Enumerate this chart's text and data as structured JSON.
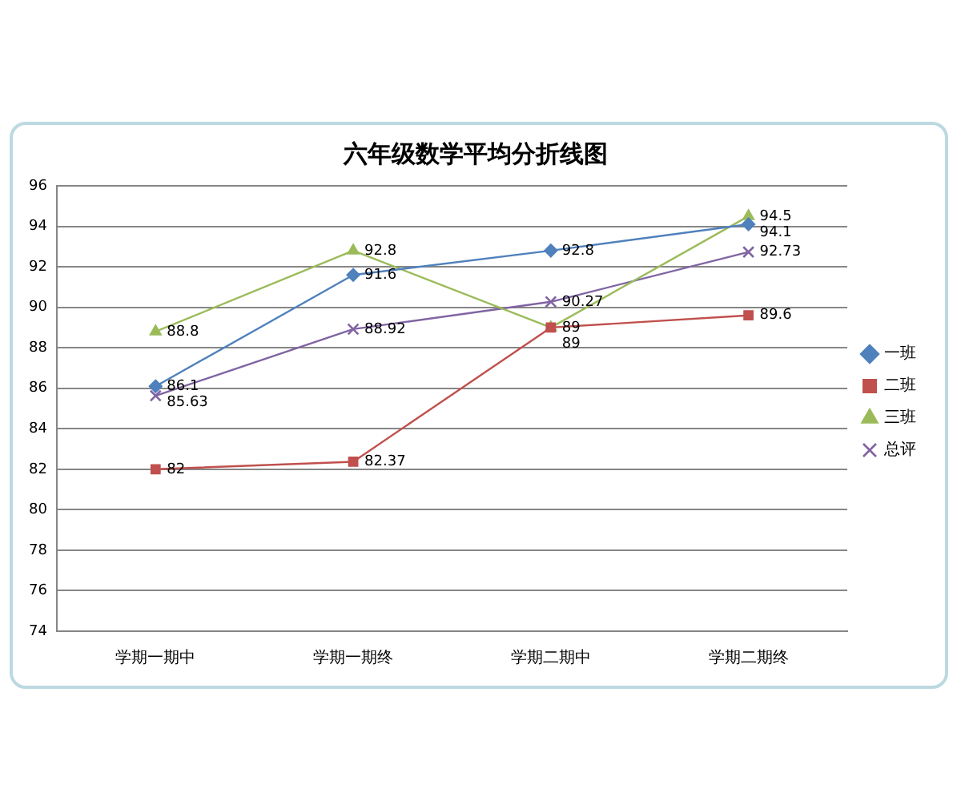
{
  "chart_data": {
    "type": "line",
    "title": "六年级数学平均分折线图",
    "categories": [
      "学期一期中",
      "学期一期终",
      "学期二期中",
      "学期二期终"
    ],
    "series": [
      {
        "name": "一班",
        "color": "#4f81bd",
        "marker": "diamond",
        "values": [
          86.1,
          91.6,
          92.8,
          94.1
        ]
      },
      {
        "name": "二班",
        "color": "#c0504d",
        "marker": "square",
        "values": [
          82,
          82.37,
          89,
          89.6
        ]
      },
      {
        "name": "三班",
        "color": "#9bbb59",
        "marker": "triangle",
        "values": [
          88.8,
          92.8,
          89,
          94.5
        ]
      },
      {
        "name": "总评",
        "color": "#8064a2",
        "marker": "cross",
        "values": [
          85.63,
          88.92,
          90.27,
          92.73
        ]
      }
    ],
    "ylim": [
      74,
      96
    ],
    "yticks": [
      74,
      76,
      78,
      80,
      82,
      84,
      86,
      88,
      90,
      92,
      94,
      96
    ],
    "grid": "y",
    "legend": "right",
    "data_labels": true,
    "line_style": "solid"
  }
}
